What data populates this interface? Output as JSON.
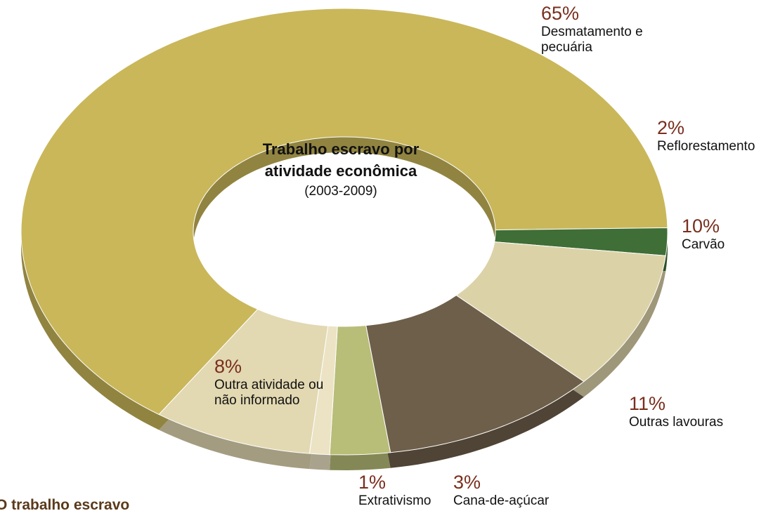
{
  "chart_data": {
    "type": "donut",
    "title": "Trabalho escravo por atividade econômica",
    "subtitle": "(2003-2009)",
    "categories": [
      "Desmatamento e pecuária",
      "Reflorestamento",
      "Carvão",
      "Outras lavouras",
      "Cana-de-açúcar",
      "Extrativismo",
      "Outra atividade ou não informado"
    ],
    "values": [
      65,
      2,
      10,
      11,
      3,
      1,
      8
    ],
    "value_labels": [
      "65%",
      "2%",
      "10%",
      "11%",
      "3%",
      "1%",
      "8%"
    ],
    "colors": [
      "#c9b75a",
      "#3f6e36",
      "#dcd2a8",
      "#6e5f4a",
      "#b8bd78",
      "#ebe3c4",
      "#e2d8b2"
    ]
  },
  "footer": {
    "heading": "O trabalho escravo"
  }
}
